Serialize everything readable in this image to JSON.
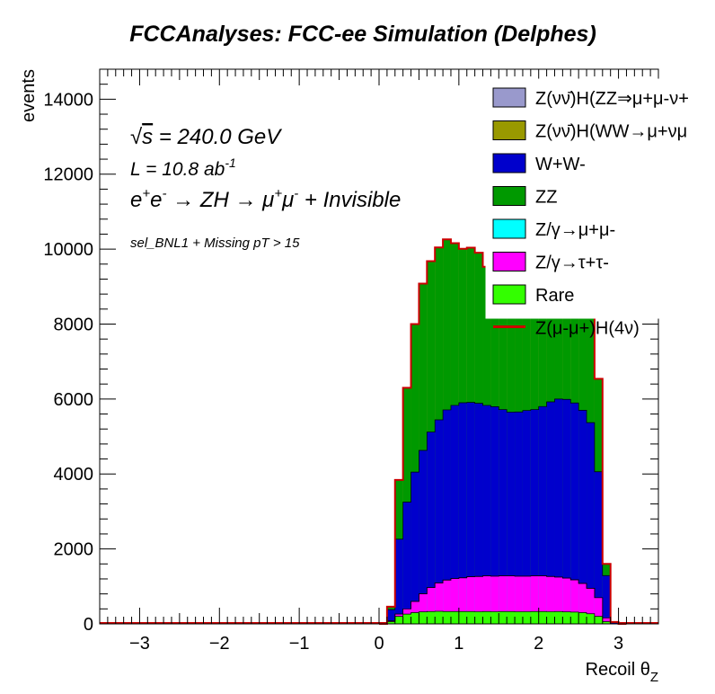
{
  "chart_data": {
    "type": "area",
    "title": "FCCAnalyses: FCC-ee Simulation (Delphes)",
    "xlabel": "Recoil θZ",
    "xlabel_main": "Recoil θ",
    "xlabel_sub": "Z",
    "ylabel": "events",
    "xlim": [
      -3.5,
      3.5
    ],
    "ylim": [
      0,
      14800
    ],
    "x_ticks": [
      -3,
      -2,
      -1,
      0,
      1,
      2,
      3
    ],
    "y_ticks": [
      0,
      2000,
      4000,
      6000,
      8000,
      10000,
      12000,
      14000
    ],
    "bin_width": 0.1,
    "bin_low_edges": [
      0.0,
      0.1,
      0.2,
      0.3,
      0.4,
      0.5,
      0.6,
      0.7,
      0.8,
      0.9,
      1.0,
      1.1,
      1.2,
      1.3,
      1.4,
      1.5,
      1.6,
      1.7,
      1.8,
      1.9,
      2.0,
      2.1,
      2.2,
      2.3,
      2.4,
      2.5,
      2.6,
      2.7,
      2.8,
      2.9,
      3.0
    ],
    "annotations": {
      "sqrt_s": "√s = 240.0 GeV",
      "lumi": "L = 10.8 ab-1",
      "process": "e+e- → ZH → μ+μ- + Invisible",
      "selection": "sel_BNL1 + Missing pT > 15"
    },
    "series": [
      {
        "name": "Rare",
        "color": "#33ff00",
        "values": [
          0,
          60,
          200,
          260,
          300,
          320,
          330,
          335,
          330,
          330,
          330,
          330,
          325,
          330,
          325,
          330,
          330,
          325,
          325,
          330,
          330,
          325,
          330,
          320,
          315,
          300,
          270,
          200,
          60,
          0,
          0
        ]
      },
      {
        "name": "Z/γ→τ+τ-",
        "color": "#ff00ff",
        "values": [
          0,
          20,
          60,
          140,
          300,
          480,
          640,
          760,
          840,
          880,
          900,
          930,
          940,
          950,
          950,
          950,
          950,
          950,
          950,
          950,
          950,
          940,
          920,
          900,
          860,
          780,
          680,
          500,
          100,
          0,
          0
        ]
      },
      {
        "name": "Z/γ→μ+μ-",
        "color": "#00ffff",
        "values": [
          0,
          0,
          0,
          0,
          0,
          0,
          0,
          0,
          0,
          0,
          0,
          0,
          0,
          0,
          0,
          0,
          0,
          0,
          0,
          0,
          0,
          0,
          0,
          0,
          0,
          0,
          0,
          0,
          0,
          0,
          0
        ]
      },
      {
        "name": "W+W-",
        "color": "#0000cc",
        "values": [
          0,
          300,
          2000,
          2850,
          3450,
          3830,
          4150,
          4350,
          4540,
          4620,
          4670,
          4650,
          4620,
          4550,
          4520,
          4440,
          4370,
          4380,
          4420,
          4440,
          4520,
          4660,
          4750,
          4770,
          4720,
          4620,
          4420,
          3360,
          1130,
          30,
          0
        ]
      },
      {
        "name": "ZZ",
        "color": "#009900",
        "values": [
          0,
          80,
          1580,
          3050,
          3950,
          4450,
          4560,
          4600,
          4550,
          4330,
          4110,
          4130,
          4020,
          3700,
          3500,
          3420,
          3320,
          3330,
          3340,
          3470,
          3560,
          3960,
          4010,
          4250,
          4500,
          4300,
          3830,
          2480,
          310,
          20,
          0
        ]
      },
      {
        "name": "Z(νν̄)H(WW→μ+νμ-ν̄)",
        "color": "#999900",
        "values": [
          0,
          0,
          0,
          0,
          0,
          0,
          0,
          0,
          0,
          0,
          0,
          0,
          0,
          0,
          0,
          0,
          0,
          0,
          0,
          0,
          0,
          0,
          0,
          0,
          0,
          0,
          0,
          0,
          0,
          0,
          0
        ]
      },
      {
        "name": "Z(νν̄)H(ZZ→μ+μ-ν+ν-)",
        "color": "#9999cc",
        "values": [
          0,
          0,
          0,
          0,
          0,
          0,
          0,
          0,
          0,
          0,
          0,
          0,
          0,
          0,
          0,
          0,
          0,
          0,
          0,
          0,
          0,
          0,
          0,
          0,
          0,
          0,
          0,
          0,
          0,
          0,
          0
        ]
      },
      {
        "name": "Z(μ-μ+)H(4ν)",
        "color": "#cc0000",
        "style": "line",
        "values": [
          0,
          0,
          0,
          0,
          0,
          0,
          0,
          0,
          0,
          0,
          0,
          0,
          0,
          0,
          0,
          0,
          0,
          0,
          0,
          0,
          0,
          0,
          0,
          0,
          0,
          0,
          0,
          0,
          0,
          0,
          0
        ]
      }
    ],
    "legend": [
      {
        "label_main": "Z(νν̄)H(ZZ⇒μ",
        "label_rest": "+μ-ν+",
        "color": "#9999cc",
        "kind": "fill"
      },
      {
        "label_main": "Z(νν̄)H(WW→μ",
        "label_rest": "+νμ",
        "color": "#999900",
        "kind": "fill"
      },
      {
        "label_main": "W+W-",
        "label_rest": "",
        "color": "#0000cc",
        "kind": "fill"
      },
      {
        "label_main": "ZZ",
        "label_rest": "",
        "color": "#009900",
        "kind": "fill"
      },
      {
        "label_main": "Z/γ→μ+μ-",
        "label_rest": "",
        "color": "#00ffff",
        "kind": "fill"
      },
      {
        "label_main": "Z/γ→τ+τ-",
        "label_rest": "",
        "color": "#ff00ff",
        "kind": "fill"
      },
      {
        "label_main": "Rare",
        "label_rest": "",
        "color": "#33ff00",
        "kind": "fill"
      },
      {
        "label_main": "Z(μ-μ+)H(4ν)",
        "label_rest": "",
        "color": "#cc0000",
        "kind": "line"
      }
    ],
    "legend_position": "top-right"
  }
}
